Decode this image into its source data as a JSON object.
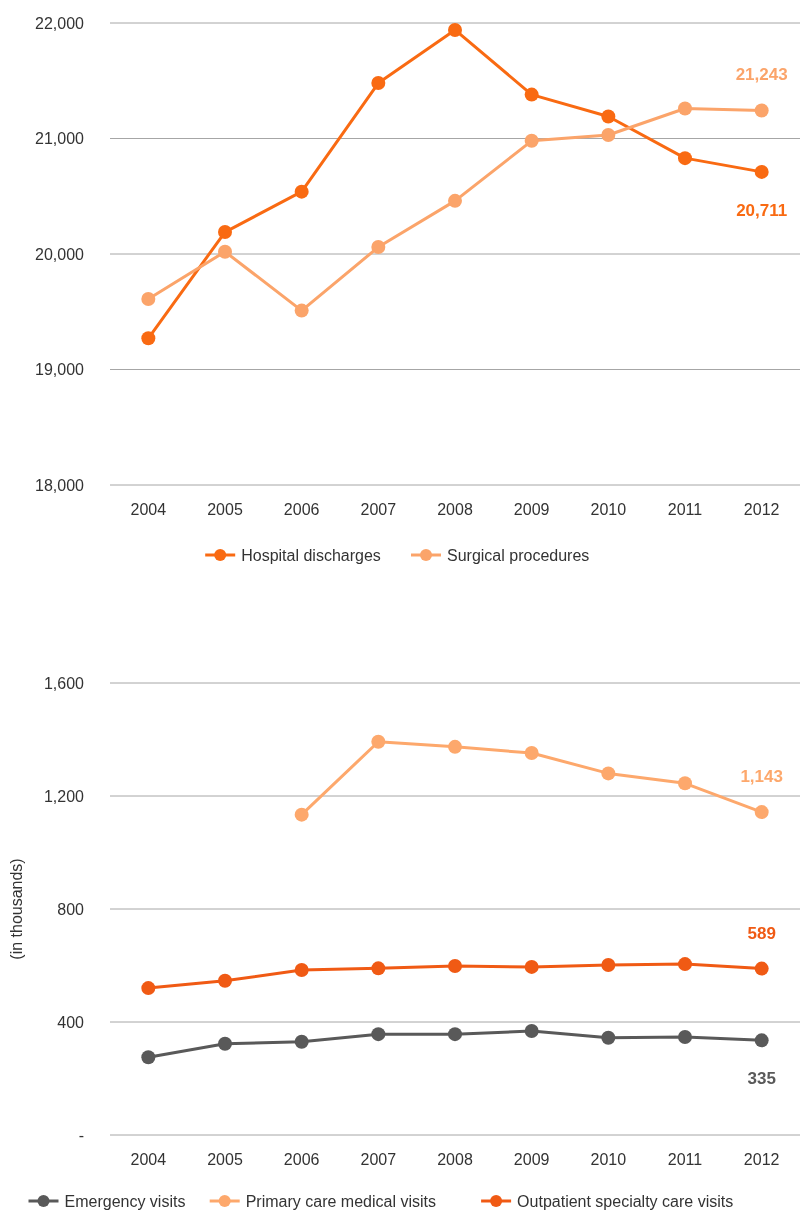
{
  "chart_data": [
    {
      "type": "line",
      "categories": [
        "2004",
        "2005",
        "2006",
        "2007",
        "2008",
        "2009",
        "2010",
        "2011",
        "2012"
      ],
      "series": [
        {
          "name": "Hospital discharges",
          "color": "#f96a12",
          "values": [
            19270,
            20190,
            20540,
            21480,
            21940,
            21380,
            21190,
            20830,
            20711
          ],
          "value_labels": [
            null,
            null,
            null,
            null,
            null,
            null,
            null,
            null,
            "20,711"
          ]
        },
        {
          "name": "Surgical procedures",
          "color": "#fba46a",
          "values": [
            19610,
            20020,
            19510,
            20060,
            20460,
            20980,
            21030,
            21260,
            21243
          ],
          "value_labels": [
            null,
            null,
            null,
            null,
            null,
            null,
            null,
            null,
            "21,243"
          ]
        }
      ],
      "ylim": [
        18000,
        22000
      ],
      "yticks": [
        {
          "value": 18000,
          "label": "18,000"
        },
        {
          "value": 19000,
          "label": "19,000"
        },
        {
          "value": 20000,
          "label": "20,000"
        },
        {
          "value": 21000,
          "label": "21,000"
        },
        {
          "value": 22000,
          "label": "22,000"
        }
      ],
      "grid": "y",
      "legend": "bottom",
      "marker": "circle",
      "line_style": "solid"
    },
    {
      "type": "line",
      "ylabel": "(in thousands)",
      "categories": [
        "2004",
        "2005",
        "2006",
        "2007",
        "2008",
        "2009",
        "2010",
        "2011",
        "2012"
      ],
      "series": [
        {
          "name": "Emergency visits",
          "color": "#595959",
          "values": [
            275,
            323,
            330,
            357,
            357,
            368,
            344,
            347,
            335
          ],
          "value_labels": [
            null,
            null,
            null,
            null,
            null,
            null,
            null,
            null,
            "335"
          ]
        },
        {
          "name": "Primary care medical visits",
          "color": "#fda86c",
          "values": [
            null,
            null,
            1134,
            1392,
            1374,
            1352,
            1280,
            1245,
            1143
          ],
          "value_labels": [
            null,
            null,
            null,
            null,
            null,
            null,
            null,
            null,
            "1,143"
          ]
        },
        {
          "name": "Outpatient specialty care visits",
          "color": "#f05a14",
          "values": [
            520,
            546,
            584,
            590,
            598,
            595,
            602,
            605,
            589
          ],
          "value_labels": [
            null,
            null,
            null,
            null,
            null,
            null,
            null,
            null,
            "589"
          ]
        }
      ],
      "ylim": [
        0,
        1600
      ],
      "yticks": [
        {
          "value": 0,
          "label": "-"
        },
        {
          "value": 400,
          "label": "400"
        },
        {
          "value": 800,
          "label": "800"
        },
        {
          "value": 1200,
          "label": "1,200"
        },
        {
          "value": 1600,
          "label": "1,600"
        }
      ],
      "grid": "y",
      "legend": "bottom",
      "marker": "circle",
      "line_style": "solid"
    }
  ]
}
